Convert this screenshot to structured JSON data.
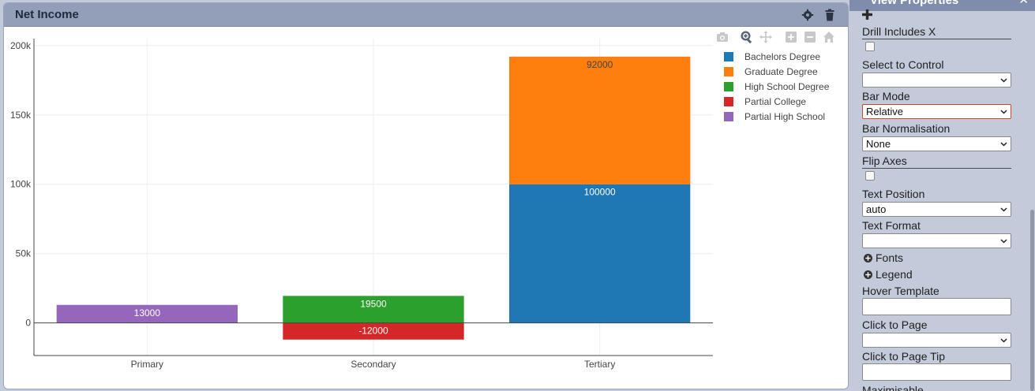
{
  "panel": {
    "title": "Net Income"
  },
  "chart_data": {
    "type": "bar",
    "barmode": "relative",
    "categories": [
      "Primary",
      "Secondary",
      "Tertiary"
    ],
    "series": [
      {
        "name": "Bachelors Degree",
        "color": "#1f77b4",
        "values": [
          null,
          null,
          100000
        ],
        "labels": [
          "",
          "",
          "100000"
        ]
      },
      {
        "name": "Graduate Degree",
        "color": "#ff7f0e",
        "values": [
          null,
          null,
          92000
        ],
        "labels": [
          "",
          "",
          "92000"
        ]
      },
      {
        "name": "High School Degree",
        "color": "#2ca02c",
        "values": [
          null,
          19500,
          null
        ],
        "labels": [
          "",
          "19500",
          ""
        ]
      },
      {
        "name": "Partial College",
        "color": "#d62728",
        "values": [
          null,
          -12000,
          null
        ],
        "labels": [
          "",
          "-12000",
          ""
        ]
      },
      {
        "name": "Partial High School",
        "color": "#9467bd",
        "values": [
          13000,
          null,
          null
        ],
        "labels": [
          "13000",
          "",
          ""
        ]
      }
    ],
    "yticks": [
      0,
      50000,
      100000,
      150000,
      200000
    ],
    "ytick_labels": [
      "0",
      "50k",
      "100k",
      "150k",
      "200k"
    ],
    "ylim": [
      -23500,
      205000
    ],
    "grid": true,
    "legend_position": "top-right"
  },
  "modebar": {
    "icons": [
      "camera-icon",
      "zoom-icon",
      "pan-icon",
      "zoom-in-icon",
      "zoom-out-icon",
      "reset-axes-home-icon"
    ]
  },
  "props": {
    "title": "View Properties",
    "drill_includes_x": {
      "label": "Drill Includes X",
      "checked": false
    },
    "select_to_control": {
      "label": "Select to Control",
      "value": ""
    },
    "bar_mode": {
      "label": "Bar Mode",
      "value": "Relative"
    },
    "bar_normalisation": {
      "label": "Bar Normalisation",
      "value": "None"
    },
    "flip_axes": {
      "label": "Flip Axes",
      "checked": false
    },
    "text_position": {
      "label": "Text Position",
      "value": "auto"
    },
    "text_format": {
      "label": "Text Format",
      "value": ""
    },
    "fonts": {
      "label": "Fonts"
    },
    "legend": {
      "label": "Legend"
    },
    "hover_template": {
      "label": "Hover Template",
      "value": ""
    },
    "click_to_page": {
      "label": "Click to Page",
      "value": ""
    },
    "click_to_page_tip": {
      "label": "Click to Page Tip",
      "value": ""
    },
    "maximisable": {
      "label": "Maximisable"
    }
  }
}
